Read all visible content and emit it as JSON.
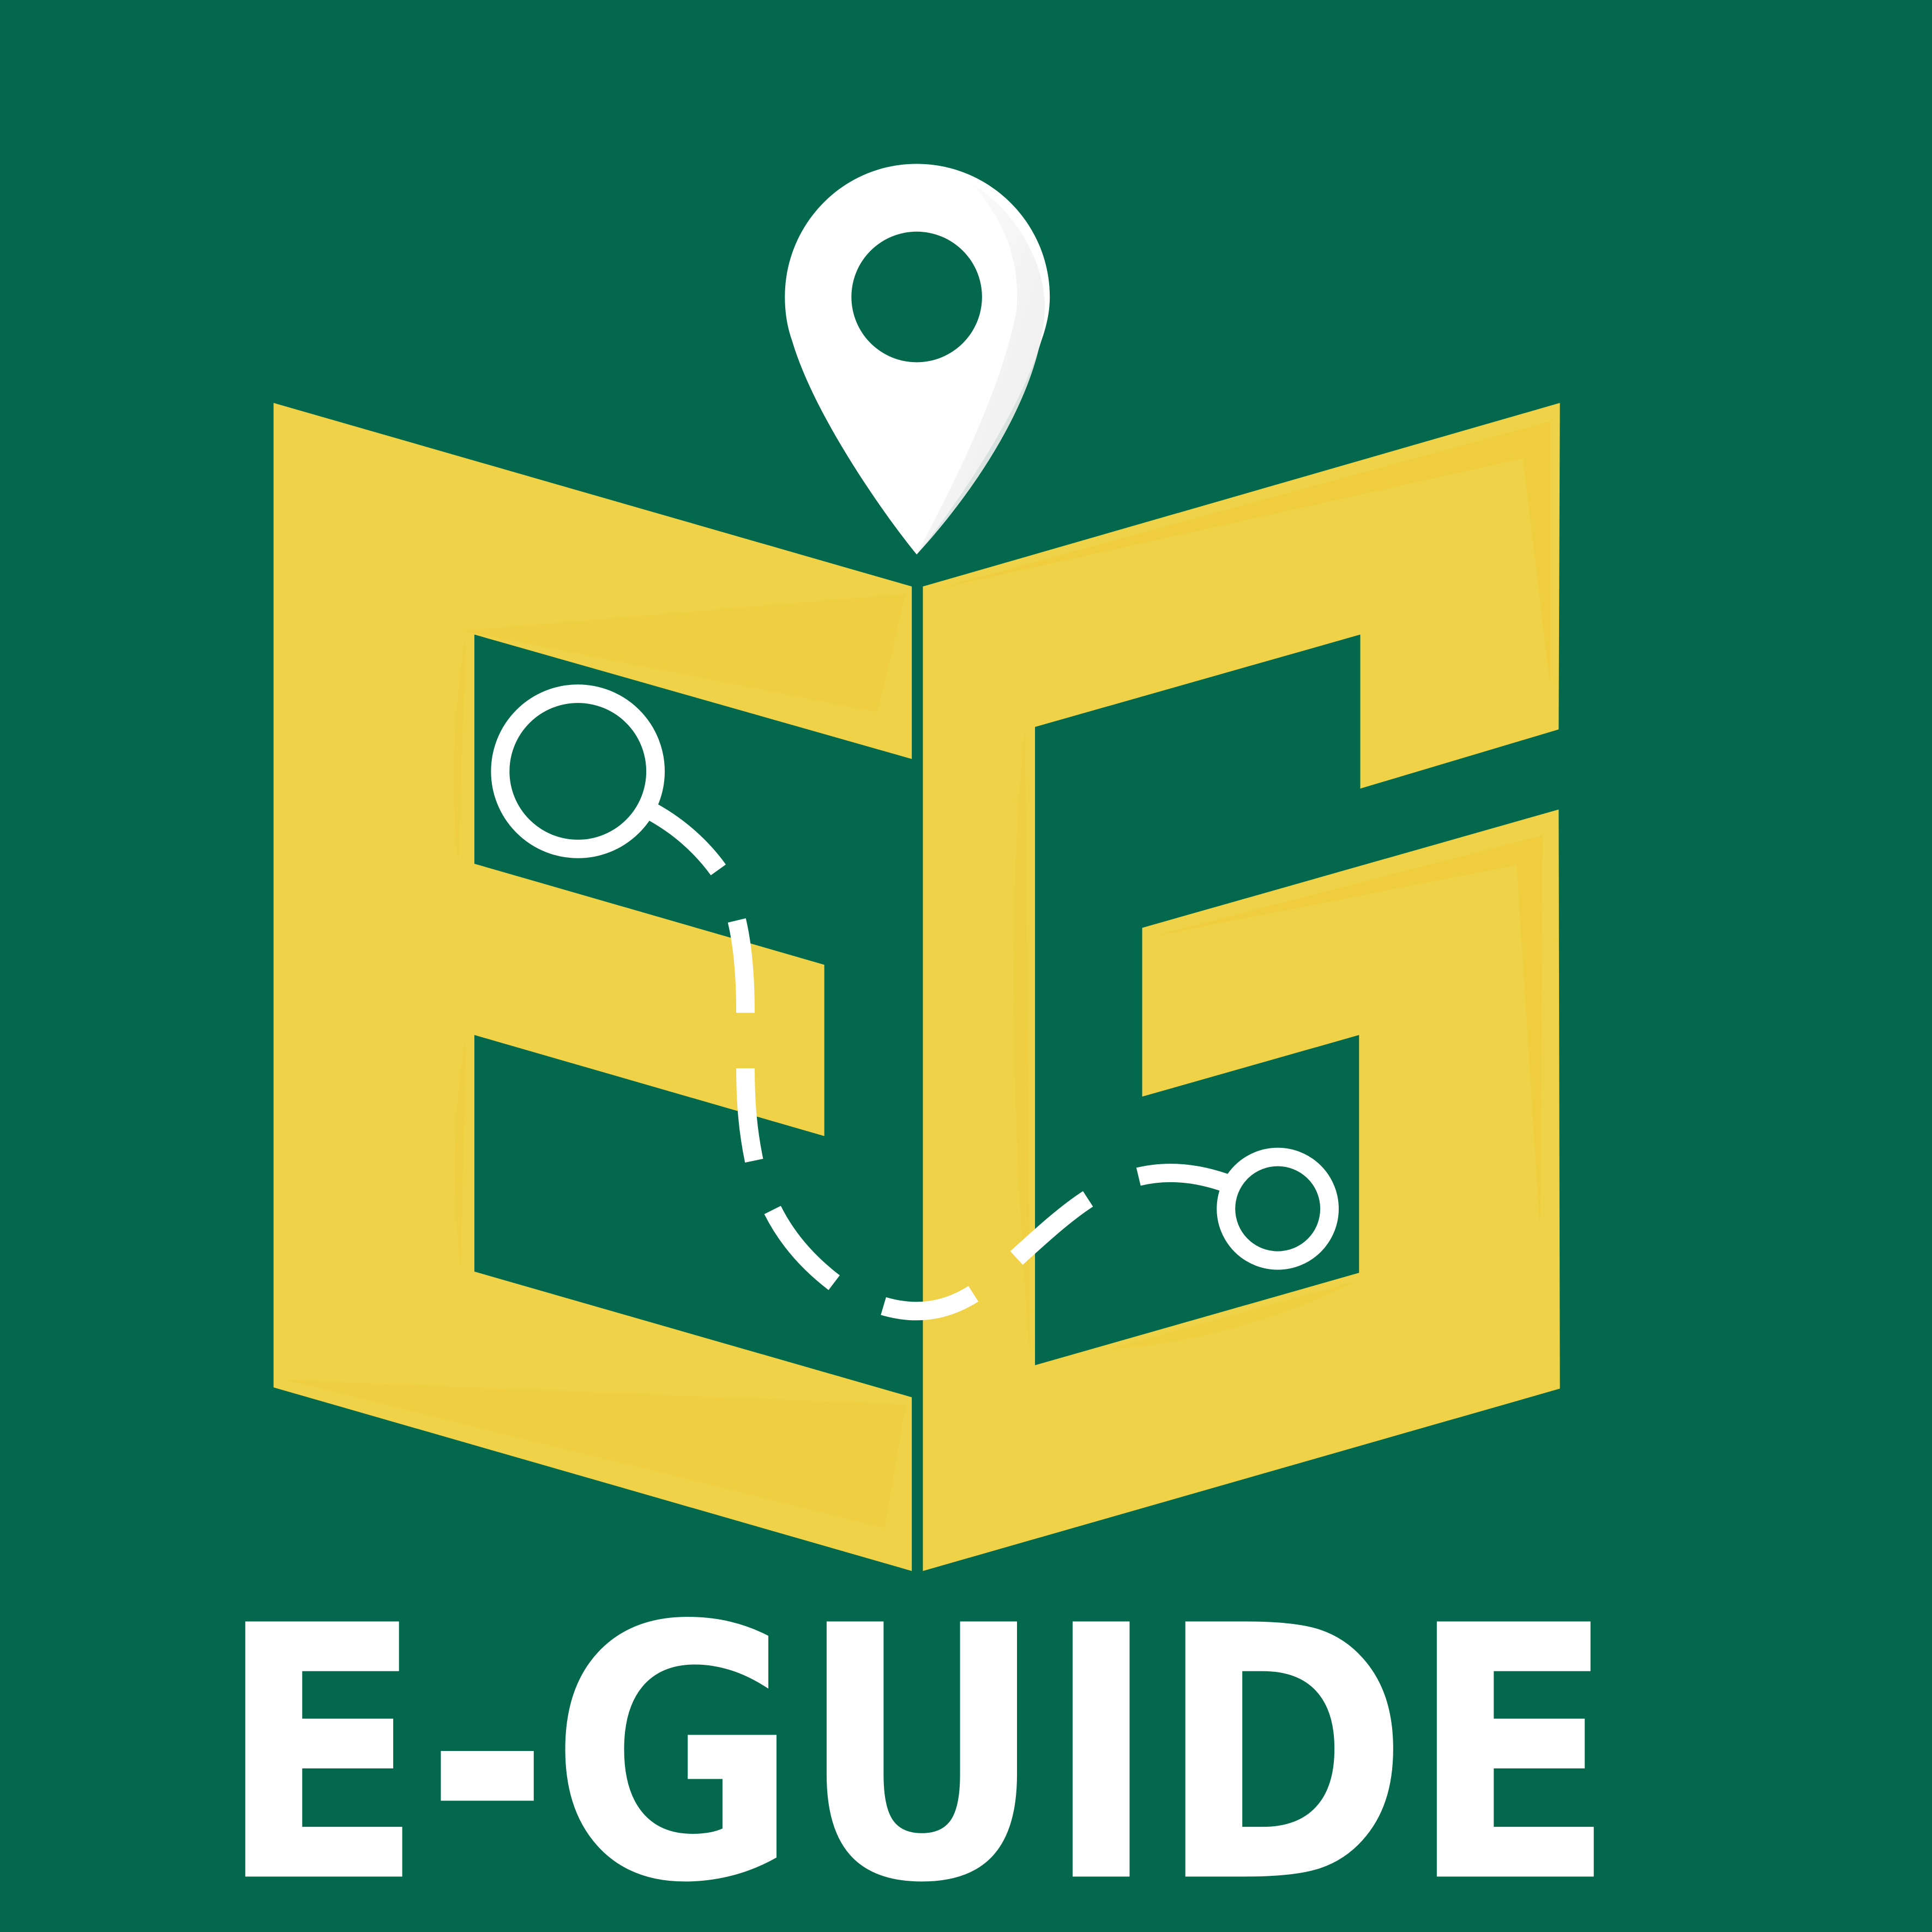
{
  "brand": {
    "name": "E-GUIDE",
    "monogram": "EG"
  },
  "icons": {
    "pin": "location-pin-icon",
    "route_start": "magnifier-icon",
    "route_end": "destination-ring-icon",
    "route": "dashed-route-path"
  },
  "colors": {
    "background": "#04694c",
    "book": "#efd247",
    "book_shadow": "#f0c838",
    "accent": "#ffffff"
  }
}
